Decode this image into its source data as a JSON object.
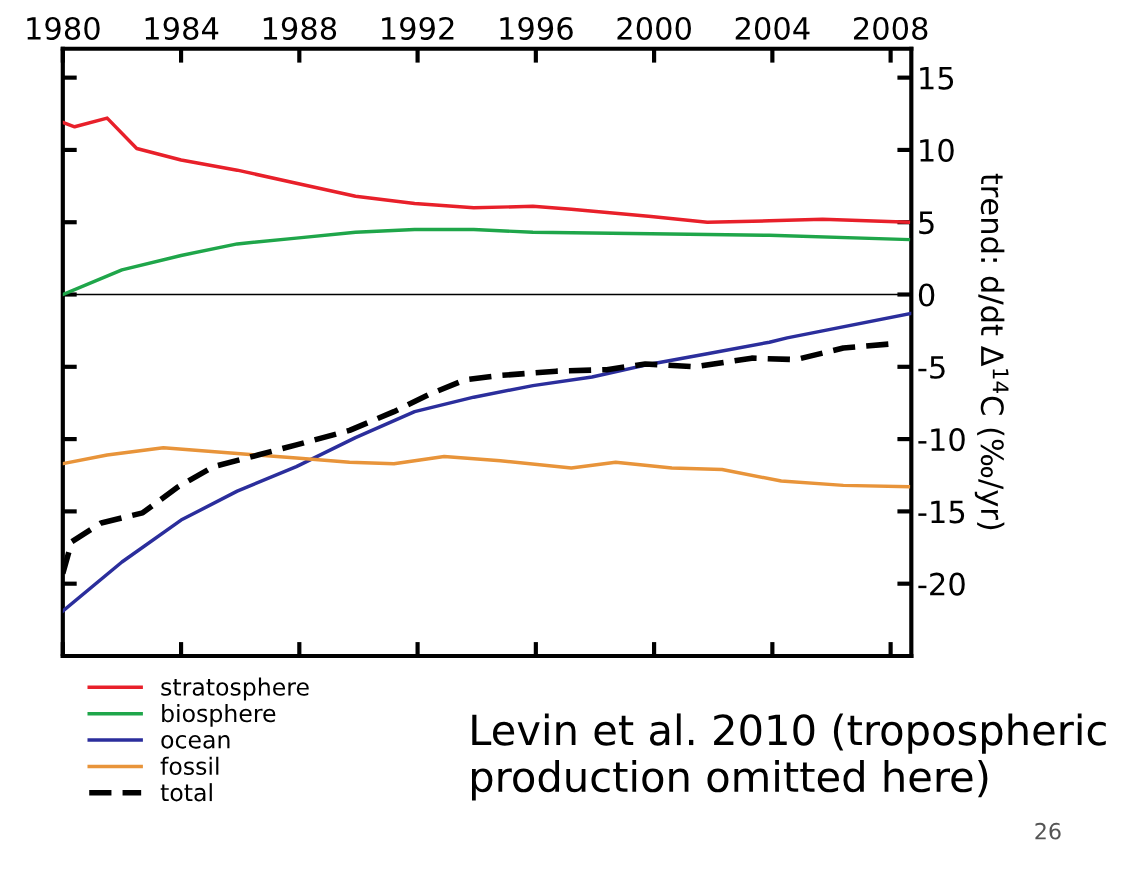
{
  "chart_data": {
    "type": "line",
    "ylabel": "trend: d/dt Δ$^{14}$C (‰/yr)",
    "xlim": [
      1980,
      2008.7
    ],
    "xticks": [
      1980,
      1984,
      1988,
      1992,
      1996,
      2000,
      2004,
      2008
    ],
    "ylim": [
      -25,
      17
    ],
    "yticks": [
      15,
      10,
      5,
      0,
      -5,
      -10,
      -15,
      -20
    ],
    "grid": false,
    "legend": "bottom left",
    "line_style": "solid",
    "marker": "none",
    "ref_lines": [
      {
        "axis": "y",
        "value": 0,
        "color": "#000000"
      }
    ],
    "annotations": [
      "Levin et al. 2010 (tropospheric production omitted here)",
      "26"
    ],
    "series": [
      {
        "name": "stratosphere",
        "color": "#e8202a",
        "x": [
          1980,
          1980.4,
          1981.5,
          1982.5,
          1984,
          1985.9,
          1987.9,
          1989.9,
          1991.9,
          1993.9,
          1995.9,
          1997.2,
          1999.9,
          2001.8,
          2003.9,
          2005.7,
          2008.6
        ],
        "values": [
          11.9,
          11.6,
          12.2,
          10.1,
          9.3,
          8.6,
          7.7,
          6.8,
          6.3,
          6.0,
          6.1,
          5.9,
          5.4,
          5.0,
          5.1,
          5.2,
          5.0
        ]
      },
      {
        "name": "biosphere",
        "color": "#1fa64a",
        "x": [
          1980,
          1982,
          1984,
          1985.9,
          1987.9,
          1989.9,
          1991.9,
          1993.9,
          1995.9,
          1999.9,
          2003.9,
          2008.6
        ],
        "values": [
          0.0,
          1.7,
          2.7,
          3.5,
          3.9,
          4.3,
          4.5,
          4.5,
          4.3,
          4.2,
          4.1,
          3.8
        ]
      },
      {
        "name": "ocean",
        "color": "#2b2e9c",
        "x": [
          1980,
          1982,
          1984,
          1985.9,
          1987.9,
          1989.9,
          1991.9,
          1993.9,
          1995.9,
          1997.9,
          1999.9,
          2001.8,
          2003.9,
          2004.5,
          2008.7
        ],
        "values": [
          -21.9,
          -18.5,
          -15.6,
          -13.6,
          -11.9,
          -9.9,
          -8.1,
          -7.1,
          -6.3,
          -5.7,
          -4.8,
          -4.1,
          -3.3,
          -3.0,
          -1.3
        ]
      },
      {
        "name": "fossil",
        "color": "#e8943a",
        "x": [
          1980,
          1981.5,
          1983.4,
          1985.9,
          1987.9,
          1989.7,
          1991.2,
          1992.9,
          1994.8,
          1997.2,
          1998.7,
          2000.6,
          2002.3,
          2004.3,
          2006.4,
          2008.6
        ],
        "values": [
          -11.7,
          -11.1,
          -10.6,
          -11.0,
          -11.3,
          -11.6,
          -11.7,
          -11.2,
          -11.5,
          -12.0,
          -11.6,
          -12.0,
          -12.1,
          -12.9,
          -13.2,
          -13.3
        ]
      },
      {
        "name": "total",
        "color": "#000000",
        "line_style": "dashed",
        "x": [
          1980,
          1980.3,
          1981.3,
          1982.7,
          1983.9,
          1985.1,
          1986.6,
          1987.9,
          1989.7,
          1991.2,
          1992.4,
          1993.6,
          1994.8,
          1996.7,
          1998.4,
          1999.7,
          2001.4,
          2003.3,
          2004.8,
          2006.4,
          2008.1
        ],
        "values": [
          -19.3,
          -17.1,
          -15.8,
          -15.1,
          -13.3,
          -11.9,
          -11.1,
          -10.4,
          -9.4,
          -8.1,
          -6.9,
          -5.9,
          -5.6,
          -5.3,
          -5.2,
          -4.8,
          -5.0,
          -4.4,
          -4.5,
          -3.7,
          -3.4
        ]
      }
    ]
  }
}
